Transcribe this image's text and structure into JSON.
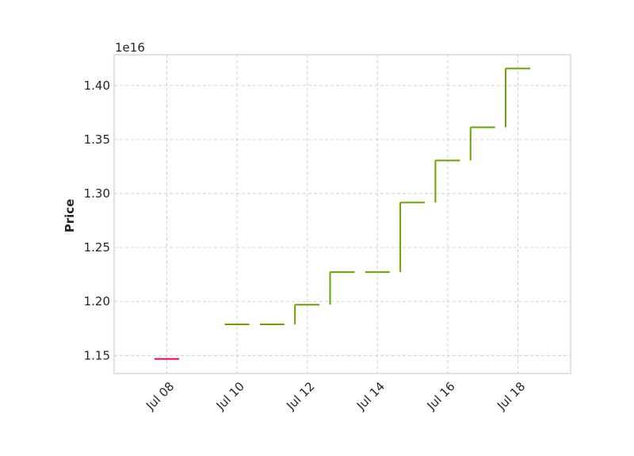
{
  "chart_data": {
    "type": "line",
    "subtype": "price-step",
    "ylabel": "Price",
    "y_offset_label": "1e16",
    "y_scale_factor": 1e+16,
    "ylim": [
      1.1333,
      1.4285
    ],
    "xlim": [
      "2025-07-06 12:00",
      "2025-07-19 12:00"
    ],
    "grid": true,
    "colors": {
      "up": "#6aa300",
      "down": "#e6005c"
    },
    "x_tick_labels": [
      "Jul 08",
      "Jul 10",
      "Jul 12",
      "Jul 14",
      "Jul 16",
      "Jul 18"
    ],
    "x_tick_dates": [
      "2025-07-08",
      "2025-07-10",
      "2025-07-12",
      "2025-07-14",
      "2025-07-16",
      "2025-07-18"
    ],
    "y_ticks": [
      1.15,
      1.2,
      1.25,
      1.3,
      1.35,
      1.4
    ],
    "y_tick_labels": [
      "1.15",
      "1.20",
      "1.25",
      "1.30",
      "1.35",
      "1.40"
    ],
    "points": [
      {
        "date": "2025-07-08",
        "price": 1.1468,
        "direction": "down"
      },
      {
        "date": "2025-07-10",
        "price": 1.1788,
        "direction": "up"
      },
      {
        "date": "2025-07-11",
        "price": 1.1788,
        "direction": "up"
      },
      {
        "date": "2025-07-12",
        "price": 1.197,
        "direction": "up"
      },
      {
        "date": "2025-07-13",
        "price": 1.2272,
        "direction": "up"
      },
      {
        "date": "2025-07-14",
        "price": 1.2272,
        "direction": "up"
      },
      {
        "date": "2025-07-15",
        "price": 1.2916,
        "direction": "up"
      },
      {
        "date": "2025-07-16",
        "price": 1.3306,
        "direction": "up"
      },
      {
        "date": "2025-07-17",
        "price": 1.3613,
        "direction": "up"
      },
      {
        "date": "2025-07-18",
        "price": 1.4157,
        "direction": "up"
      }
    ]
  }
}
